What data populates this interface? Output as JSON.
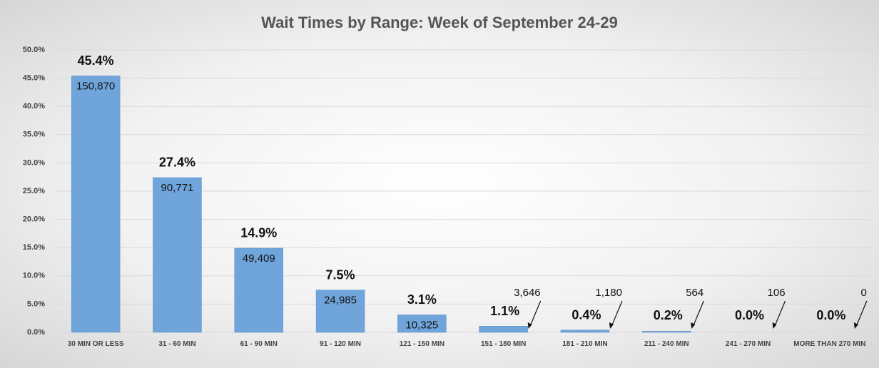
{
  "chart_data": {
    "type": "bar",
    "title": "Wait Times by Range:  Week of September 24-29",
    "categories": [
      "30 MIN OR LESS",
      "31 - 60 MIN",
      "61 - 90 MIN",
      "91 - 120 MIN",
      "121 - 150 MIN",
      "151 - 180 MIN",
      "181 - 210 MIN",
      "211 - 240 MIN",
      "241 - 270 MIN",
      "MORE THAN 270 MIN"
    ],
    "values": [
      45.4,
      27.4,
      14.9,
      7.5,
      3.1,
      1.1,
      0.4,
      0.2,
      0.0,
      0.0
    ],
    "value_labels": [
      "45.4%",
      "27.4%",
      "14.9%",
      "7.5%",
      "3.1%",
      "1.1%",
      "0.4%",
      "0.2%",
      "0.0%",
      "0.0%"
    ],
    "count_labels": [
      "150,870",
      "90,771",
      "49,409",
      "24,985",
      "10,325",
      "3,646",
      "1,180",
      "564",
      "106",
      "0"
    ],
    "color": "#6fa5db",
    "ylim": [
      0,
      50
    ],
    "yticks": [
      {
        "value": 0,
        "label": "0.0%"
      },
      {
        "value": 5,
        "label": "5.0%"
      },
      {
        "value": 10,
        "label": "10.0%"
      },
      {
        "value": 15,
        "label": "15.0%"
      },
      {
        "value": 20,
        "label": "20.0%"
      },
      {
        "value": 25,
        "label": "25.0%"
      },
      {
        "value": 30,
        "label": "30.0%"
      },
      {
        "value": 35,
        "label": "35.0%"
      },
      {
        "value": 40,
        "label": "40.0%"
      },
      {
        "value": 45,
        "label": "45.0%"
      },
      {
        "value": 50,
        "label": "50.0%"
      }
    ],
    "grid": true
  }
}
